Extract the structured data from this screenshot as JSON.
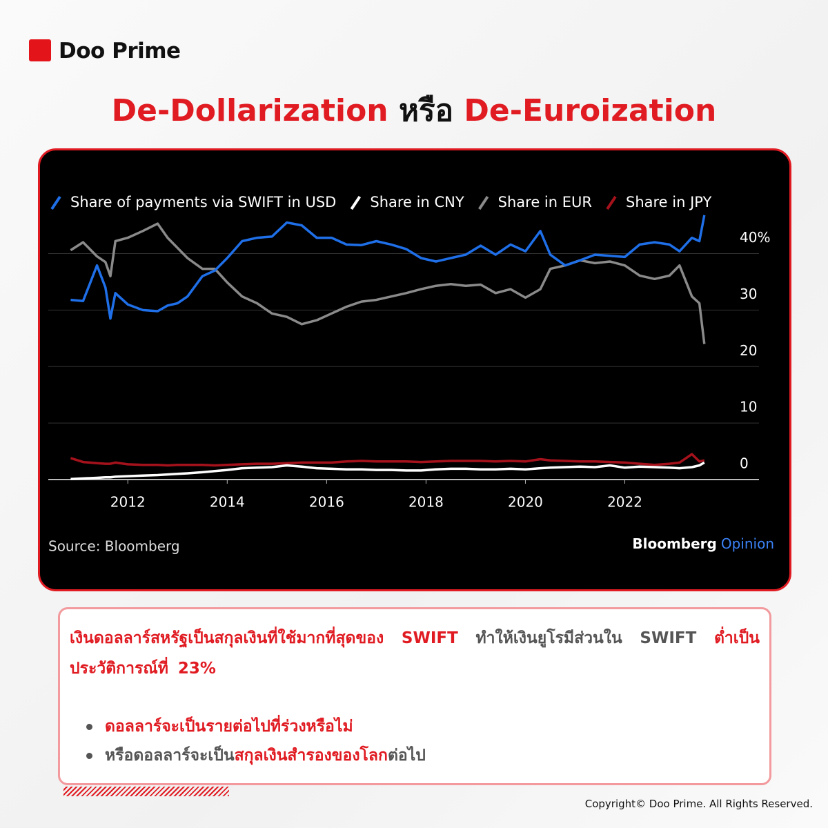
{
  "brand": "Doo Prime",
  "heading": {
    "part1": "De-Dollarization",
    "part2": "หรือ",
    "part3": "De-Euroization"
  },
  "chart_data": {
    "type": "line",
    "legend": "top",
    "grid": true,
    "x": [
      2010.85,
      2011.1,
      2011.38,
      2011.55,
      2011.65,
      2011.75,
      2012.0,
      2012.3,
      2012.6,
      2012.8,
      2013.0,
      2013.2,
      2013.5,
      2013.75,
      2014.0,
      2014.3,
      2014.6,
      2014.9,
      2015.2,
      2015.5,
      2015.8,
      2016.1,
      2016.4,
      2016.7,
      2017.0,
      2017.3,
      2017.6,
      2017.9,
      2018.2,
      2018.5,
      2018.8,
      2019.1,
      2019.4,
      2019.7,
      2020.0,
      2020.3,
      2020.5,
      2020.8,
      2021.1,
      2021.4,
      2021.7,
      2022.0,
      2022.3,
      2022.6,
      2022.9,
      2023.1,
      2023.35,
      2023.5,
      2023.6
    ],
    "xlim": [
      2010.4,
      2024.7
    ],
    "xticks": [
      2012,
      2014,
      2016,
      2018,
      2020,
      2022
    ],
    "ylim": [
      0,
      48
    ],
    "yticks": [
      0,
      10,
      20,
      30,
      {
        "value": 40,
        "label": "40%"
      }
    ],
    "series": [
      {
        "name": "Share of payments via SWIFT in USD",
        "color": "#1f6fe8",
        "values": [
          31.8,
          31.6,
          37.9,
          34,
          28.5,
          33,
          31,
          30,
          29.8,
          30.8,
          31.2,
          32.4,
          36,
          37,
          39.2,
          42.2,
          42.8,
          43,
          45.5,
          45,
          42.8,
          42.8,
          41.6,
          41.5,
          42.2,
          41.6,
          40.8,
          39.2,
          38.6,
          39.2,
          39.8,
          41.4,
          39.8,
          41.6,
          40.4,
          44,
          39.8,
          37.9,
          38.8,
          39.8,
          39.6,
          39.4,
          41.6,
          42,
          41.6,
          40.4,
          42.8,
          42.2,
          46.8
        ]
      },
      {
        "name": "Share in CNY",
        "color": "#ffffff",
        "values": [
          0.1,
          0.2,
          0.3,
          0.4,
          0.4,
          0.5,
          0.6,
          0.7,
          0.8,
          0.9,
          1,
          1.1,
          1.3,
          1.5,
          1.7,
          2,
          2.1,
          2.2,
          2.5,
          2.3,
          2,
          1.9,
          1.8,
          1.8,
          1.7,
          1.7,
          1.6,
          1.6,
          1.8,
          1.9,
          1.9,
          1.8,
          1.8,
          1.9,
          1.8,
          2,
          2.1,
          2.2,
          2.3,
          2.2,
          2.5,
          2.1,
          2.3,
          2.2,
          2.1,
          2,
          2.2,
          2.5,
          3
        ]
      },
      {
        "name": "Share in EUR",
        "color": "#8a8a8a",
        "values": [
          40.6,
          42,
          39.5,
          38.5,
          36,
          42.2,
          42.8,
          44,
          45.3,
          42.8,
          41,
          39.2,
          37.3,
          37.3,
          34.9,
          32.4,
          31.2,
          29.4,
          28.8,
          27.5,
          28.2,
          29.4,
          30.6,
          31.5,
          31.8,
          32.4,
          33,
          33.7,
          34.3,
          34.6,
          34.3,
          34.5,
          33,
          33.7,
          32.2,
          33.7,
          37.3,
          37.9,
          38.8,
          38.3,
          38.6,
          37.9,
          36.1,
          35.5,
          36.1,
          37.9,
          32.4,
          31.2,
          24
        ]
      },
      {
        "name": "Share in JPY",
        "color": "#a5121c",
        "values": [
          3.8,
          3.1,
          2.9,
          2.8,
          2.8,
          3,
          2.7,
          2.6,
          2.6,
          2.5,
          2.6,
          2.6,
          2.6,
          2.5,
          2.6,
          2.7,
          2.8,
          2.8,
          2.9,
          3,
          3,
          3,
          3.2,
          3.3,
          3.2,
          3.2,
          3.2,
          3.1,
          3.2,
          3.3,
          3.3,
          3.3,
          3.2,
          3.3,
          3.2,
          3.6,
          3.4,
          3.3,
          3.2,
          3.2,
          3.1,
          3,
          2.8,
          2.6,
          2.8,
          3,
          4.5,
          3.2,
          3.4
        ]
      }
    ],
    "source": "Source: Bloomberg",
    "credit": {
      "main": "Bloomberg",
      "accent": "Opinion"
    }
  },
  "note": {
    "paragraph": [
      "เงินดอลลาร์สหรัฐเป็นสกุลเงินที่ใช้มากที่สุดของ SWIFT",
      "ทำให้เงินยูโรมีส่วนใน SWIFT",
      "ต่ำเป็นประวัติการณ์ที่ 23%"
    ],
    "bullets": [
      [
        "ดอลลาร์จะเป็นรายต่อไปที่ร่วงหรือไม่"
      ],
      [
        "หรือดอลลาร์จะเป็น",
        "สกุลเงินสำรองของโลก",
        "ต่อไป"
      ]
    ]
  },
  "copyright": "Copyright© Doo Prime. All Rights Reserved."
}
